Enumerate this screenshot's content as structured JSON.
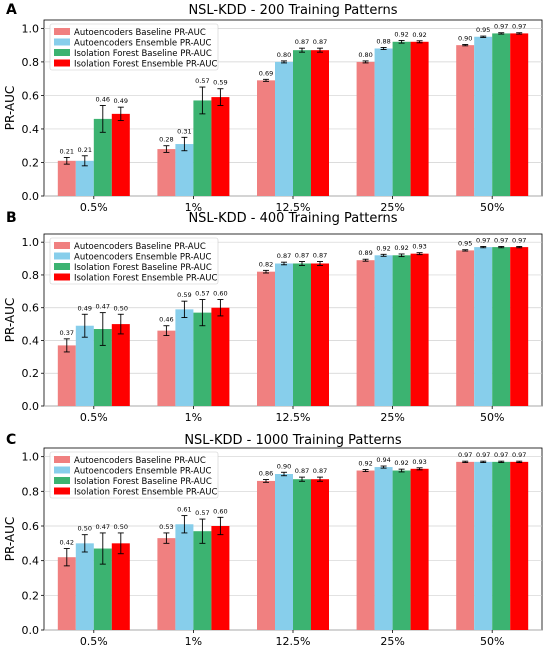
{
  "chart_data": [
    {
      "type": "bar",
      "panel_label": "A",
      "title": "NSL-KDD - 200 Training Patterns",
      "xlabel": "",
      "ylabel": "PR-AUC",
      "ylim": [
        0,
        1.05
      ],
      "yticks": [
        "0.0",
        "0.2",
        "0.4",
        "0.6",
        "0.8",
        "1.0"
      ],
      "categories": [
        "0.5%",
        "1%",
        "12.5%",
        "25%",
        "50%"
      ],
      "legend": "top-left",
      "series": [
        {
          "name": "Autoencoders Baseline PR-AUC",
          "color": "#f08080",
          "values": [
            0.21,
            0.28,
            0.69,
            0.8,
            0.9
          ],
          "errors": [
            0.02,
            0.02,
            0.006,
            0.006,
            0.004
          ],
          "labels": [
            "0.21",
            "0.28",
            "0.69",
            "0.80",
            "0.90"
          ]
        },
        {
          "name": "Autoencoders Ensemble PR-AUC",
          "color": "#87ceeb",
          "values": [
            0.21,
            0.31,
            0.8,
            0.88,
            0.95
          ],
          "errors": [
            0.03,
            0.04,
            0.006,
            0.006,
            0.004
          ],
          "labels": [
            "0.21",
            "0.31",
            "0.80",
            "0.88",
            "0.95"
          ]
        },
        {
          "name": "Isolation Forest Baseline PR-AUC",
          "color": "#3cb371",
          "values": [
            0.46,
            0.57,
            0.87,
            0.92,
            0.97
          ],
          "errors": [
            0.08,
            0.08,
            0.012,
            0.008,
            0.004
          ],
          "labels": [
            "0.46",
            "0.57",
            "0.87",
            "0.92",
            "0.97"
          ]
        },
        {
          "name": "Isolation Forest Ensemble PR-AUC",
          "color": "#ff0000",
          "values": [
            0.49,
            0.59,
            0.87,
            0.92,
            0.97
          ],
          "errors": [
            0.04,
            0.05,
            0.012,
            0.006,
            0.004
          ],
          "labels": [
            "0.49",
            "0.59",
            "0.87",
            "0.92",
            "0.97"
          ]
        }
      ]
    },
    {
      "type": "bar",
      "panel_label": "B",
      "title": "NSL-KDD - 400 Training Patterns",
      "xlabel": "",
      "ylabel": "PR-AUC",
      "ylim": [
        0,
        1.05
      ],
      "yticks": [
        "0.0",
        "0.2",
        "0.4",
        "0.6",
        "0.8",
        "1.0"
      ],
      "categories": [
        "0.5%",
        "1%",
        "12.5%",
        "25%",
        "50%"
      ],
      "legend": "top-left",
      "series": [
        {
          "name": "Autoencoders Baseline PR-AUC",
          "color": "#f08080",
          "values": [
            0.37,
            0.46,
            0.82,
            0.89,
            0.95
          ],
          "errors": [
            0.04,
            0.03,
            0.008,
            0.006,
            0.004
          ],
          "labels": [
            "0.37",
            "0.46",
            "0.82",
            "0.89",
            "0.95"
          ]
        },
        {
          "name": "Autoencoders Ensemble PR-AUC",
          "color": "#87ceeb",
          "values": [
            0.49,
            0.59,
            0.87,
            0.92,
            0.97
          ],
          "errors": [
            0.07,
            0.05,
            0.008,
            0.006,
            0.004
          ],
          "labels": [
            "0.49",
            "0.59",
            "0.87",
            "0.92",
            "0.97"
          ]
        },
        {
          "name": "Isolation Forest Baseline PR-AUC",
          "color": "#3cb371",
          "values": [
            0.47,
            0.57,
            0.87,
            0.92,
            0.97
          ],
          "errors": [
            0.1,
            0.08,
            0.012,
            0.008,
            0.004
          ],
          "labels": [
            "0.47",
            "0.57",
            "0.87",
            "0.92",
            "0.97"
          ]
        },
        {
          "name": "Isolation Forest Ensemble PR-AUC",
          "color": "#ff0000",
          "values": [
            0.5,
            0.6,
            0.87,
            0.93,
            0.97
          ],
          "errors": [
            0.06,
            0.05,
            0.012,
            0.006,
            0.004
          ],
          "labels": [
            "0.50",
            "0.60",
            "0.87",
            "0.93",
            "0.97"
          ]
        }
      ]
    },
    {
      "type": "bar",
      "panel_label": "C",
      "title": "NSL-KDD - 1000 Training Patterns",
      "xlabel": "",
      "ylabel": "PR-AUC",
      "ylim": [
        0,
        1.05
      ],
      "yticks": [
        "0.0",
        "0.2",
        "0.4",
        "0.6",
        "0.8",
        "1.0"
      ],
      "categories": [
        "0.5%",
        "1%",
        "12.5%",
        "25%",
        "50%"
      ],
      "legend": "top-left",
      "series": [
        {
          "name": "Autoencoders Baseline PR-AUC",
          "color": "#f08080",
          "values": [
            0.42,
            0.53,
            0.86,
            0.92,
            0.97
          ],
          "errors": [
            0.05,
            0.03,
            0.008,
            0.006,
            0.004
          ],
          "labels": [
            "0.42",
            "0.53",
            "0.86",
            "0.92",
            "0.97"
          ]
        },
        {
          "name": "Autoencoders Ensemble PR-AUC",
          "color": "#87ceeb",
          "values": [
            0.5,
            0.61,
            0.9,
            0.94,
            0.97
          ],
          "errors": [
            0.05,
            0.05,
            0.01,
            0.006,
            0.004
          ],
          "labels": [
            "0.50",
            "0.61",
            "0.90",
            "0.94",
            "0.97"
          ]
        },
        {
          "name": "Isolation Forest Baseline PR-AUC",
          "color": "#3cb371",
          "values": [
            0.47,
            0.57,
            0.87,
            0.92,
            0.97
          ],
          "errors": [
            0.09,
            0.07,
            0.012,
            0.008,
            0.004
          ],
          "labels": [
            "0.47",
            "0.57",
            "0.87",
            "0.92",
            "0.97"
          ]
        },
        {
          "name": "Isolation Forest Ensemble PR-AUC",
          "color": "#ff0000",
          "values": [
            0.5,
            0.6,
            0.87,
            0.93,
            0.97
          ],
          "errors": [
            0.06,
            0.05,
            0.012,
            0.006,
            0.004
          ],
          "labels": [
            "0.50",
            "0.60",
            "0.87",
            "0.93",
            "0.97"
          ]
        }
      ]
    }
  ]
}
